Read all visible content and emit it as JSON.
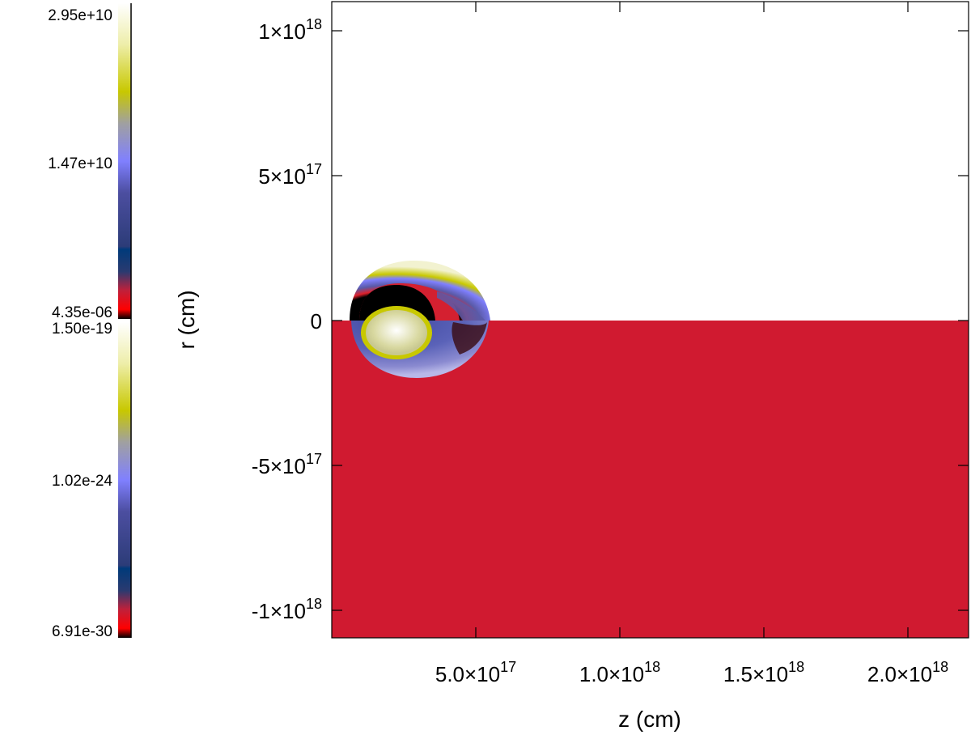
{
  "chart_data": {
    "type": "heatmap",
    "xlabel": "z (cm)",
    "ylabel": "r (cm)",
    "xlim": [
      0,
      2.2e+18
    ],
    "ylim": [
      -1.1e+18,
      1.1e+18
    ],
    "x_ticks": [
      {
        "value": 5e+17,
        "mantissa": "5.0",
        "exp": "17"
      },
      {
        "value": 1e+18,
        "mantissa": "1.0",
        "exp": "18"
      },
      {
        "value": 1.5e+18,
        "mantissa": "1.5",
        "exp": "18"
      },
      {
        "value": 2e+18,
        "mantissa": "2.0",
        "exp": "18"
      }
    ],
    "y_ticks": [
      {
        "value": 1e+18,
        "mantissa": "1",
        "exp": "18",
        "label": ""
      },
      {
        "value": 5e+17,
        "mantissa": "5",
        "exp": "17",
        "label": ""
      },
      {
        "value": 0,
        "mantissa": "",
        "exp": "",
        "label": "0"
      },
      {
        "value": -5e+17,
        "mantissa": "-5",
        "exp": "17",
        "label": ""
      },
      {
        "value": -1e+18,
        "mantissa": "-1",
        "exp": "18",
        "label": ""
      }
    ],
    "colorbar_top": {
      "labels": [
        "2.95e+10",
        "1.47e+10",
        "4.35e-06"
      ]
    },
    "colorbar_bottom": {
      "labels": [
        "1.50e-19",
        "1.02e-24",
        "6.91e-30"
      ]
    },
    "colors": {
      "upper_half_background": "#ffffff",
      "lower_half_background": "#d01a30",
      "colormap": [
        "#000000",
        "#ff0000",
        "#c0203a",
        "#2a3a70",
        "#003a7a",
        "#4c4ea0",
        "#8080ff",
        "#a0a0a0",
        "#c8c800",
        "#eeeeaa",
        "#ffffff"
      ]
    }
  }
}
